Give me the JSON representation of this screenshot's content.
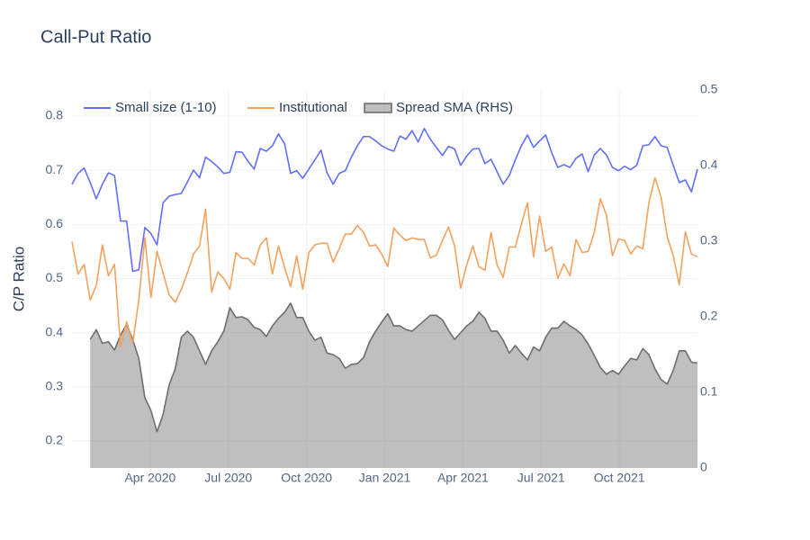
{
  "chart_data": {
    "type": "line",
    "title": "Call-Put Ratio",
    "y_label": "C/P Ratio",
    "xlim": [
      "2020-01",
      "2022-01"
    ],
    "xticks": [
      {
        "value": "2020-04",
        "label": "Apr 2020"
      },
      {
        "value": "2020-07",
        "label": "Jul 2020"
      },
      {
        "value": "2020-10",
        "label": "Oct 2020"
      },
      {
        "value": "2021-01",
        "label": "Jan 2021"
      },
      {
        "value": "2021-04",
        "label": "Apr 2021"
      },
      {
        "value": "2021-07",
        "label": "Jul 2021"
      },
      {
        "value": "2021-10",
        "label": "Oct 2021"
      }
    ],
    "ylim": [
      0.15,
      0.848
    ],
    "yticks": [
      0.2,
      0.3,
      0.4,
      0.5,
      0.6,
      0.7,
      0.8
    ],
    "y2lim": [
      0,
      0.5
    ],
    "y2ticks": [
      0,
      0.1,
      0.2,
      0.3,
      0.4,
      0.5
    ],
    "grid": true,
    "legend": "top-left",
    "series": [
      {
        "name": "Small size (1-10)",
        "color": "#636efa",
        "values": [
          0.674,
          0.694,
          0.704,
          0.677,
          0.647,
          0.674,
          0.695,
          0.69,
          0.606,
          0.606,
          0.513,
          0.516,
          0.594,
          0.583,
          0.562,
          0.64,
          0.652,
          0.655,
          0.657,
          0.678,
          0.7,
          0.686,
          0.724,
          0.716,
          0.706,
          0.694,
          0.696,
          0.734,
          0.733,
          0.716,
          0.702,
          0.74,
          0.735,
          0.745,
          0.767,
          0.749,
          0.694,
          0.699,
          0.685,
          0.702,
          0.719,
          0.737,
          0.695,
          0.674,
          0.694,
          0.699,
          0.724,
          0.745,
          0.762,
          0.762,
          0.754,
          0.745,
          0.739,
          0.735,
          0.763,
          0.757,
          0.773,
          0.752,
          0.777,
          0.757,
          0.742,
          0.727,
          0.744,
          0.739,
          0.709,
          0.726,
          0.739,
          0.74,
          0.712,
          0.72,
          0.697,
          0.674,
          0.69,
          0.719,
          0.745,
          0.765,
          0.742,
          0.754,
          0.765,
          0.732,
          0.705,
          0.71,
          0.705,
          0.722,
          0.73,
          0.697,
          0.728,
          0.74,
          0.728,
          0.705,
          0.699,
          0.707,
          0.701,
          0.709,
          0.745,
          0.747,
          0.762,
          0.745,
          0.742,
          0.709,
          0.677,
          0.682,
          0.66,
          0.702
        ]
      },
      {
        "name": "Institutional",
        "color": "#f5a25d",
        "values": [
          0.568,
          0.508,
          0.526,
          0.46,
          0.487,
          0.562,
          0.505,
          0.526,
          0.373,
          0.42,
          0.38,
          0.46,
          0.575,
          0.465,
          0.55,
          0.51,
          0.47,
          0.456,
          0.48,
          0.51,
          0.545,
          0.56,
          0.628,
          0.475,
          0.512,
          0.5,
          0.48,
          0.548,
          0.537,
          0.537,
          0.525,
          0.562,
          0.575,
          0.508,
          0.56,
          0.52,
          0.485,
          0.542,
          0.48,
          0.548,
          0.562,
          0.565,
          0.565,
          0.53,
          0.555,
          0.582,
          0.582,
          0.598,
          0.585,
          0.56,
          0.562,
          0.545,
          0.522,
          0.593,
          0.58,
          0.57,
          0.575,
          0.572,
          0.572,
          0.538,
          0.543,
          0.57,
          0.595,
          0.56,
          0.482,
          0.525,
          0.56,
          0.522,
          0.515,
          0.585,
          0.525,
          0.502,
          0.558,
          0.558,
          0.6,
          0.64,
          0.54,
          0.615,
          0.55,
          0.558,
          0.5,
          0.527,
          0.505,
          0.572,
          0.548,
          0.55,
          0.585,
          0.647,
          0.617,
          0.542,
          0.573,
          0.57,
          0.545,
          0.56,
          0.555,
          0.64,
          0.686,
          0.65,
          0.578,
          0.542,
          0.488,
          0.586,
          0.545,
          0.54
        ]
      },
      {
        "name": "Spread SMA (RHS)",
        "color": "#6e6e6e",
        "fill": "rgba(128,128,128,0.5)",
        "axis": "y2",
        "values": [
          null,
          null,
          null,
          0.17,
          0.183,
          0.165,
          0.167,
          0.156,
          0.176,
          0.19,
          0.17,
          0.145,
          0.093,
          0.076,
          0.048,
          0.071,
          0.11,
          0.131,
          0.173,
          0.181,
          0.173,
          0.155,
          0.137,
          0.155,
          0.167,
          0.181,
          0.212,
          0.199,
          0.2,
          0.196,
          0.186,
          0.183,
          0.174,
          0.188,
          0.198,
          0.206,
          0.218,
          0.199,
          0.199,
          0.181,
          0.169,
          0.173,
          0.152,
          0.15,
          0.145,
          0.132,
          0.137,
          0.138,
          0.146,
          0.167,
          0.181,
          0.193,
          0.204,
          0.188,
          0.188,
          0.183,
          0.181,
          0.188,
          0.195,
          0.202,
          0.202,
          0.196,
          0.182,
          0.17,
          0.179,
          0.188,
          0.194,
          0.206,
          0.198,
          0.181,
          0.181,
          0.169,
          0.152,
          0.162,
          0.152,
          0.143,
          0.16,
          0.155,
          0.173,
          0.185,
          0.185,
          0.194,
          0.188,
          0.183,
          0.176,
          0.164,
          0.149,
          0.133,
          0.124,
          0.129,
          0.124,
          0.135,
          0.145,
          0.143,
          0.158,
          0.15,
          0.131,
          0.117,
          0.111,
          0.129,
          0.155,
          0.155,
          0.14,
          0.139
        ]
      }
    ]
  }
}
